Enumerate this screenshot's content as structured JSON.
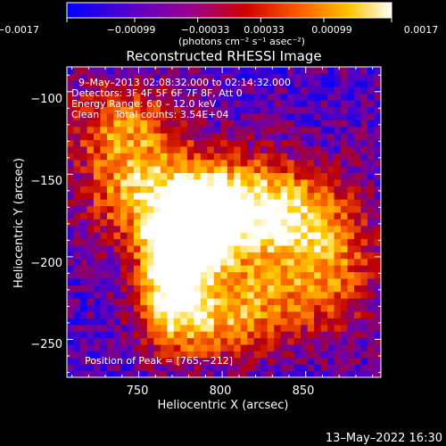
{
  "colorbar": {
    "ticks": [
      "−0.0017",
      "−0.00099",
      "−0.00033",
      "0.00033",
      "0.00099",
      "0.0017"
    ],
    "unit_label": "(photons cm⁻² s⁻¹ asec⁻²)"
  },
  "title": "Reconstructed RHESSI Image",
  "info": {
    "time_range": "9–May–2013 02:08:32.000 to 02:14:32.000",
    "detectors": "Detectors: 3F 4F 5F 6F 7F 8F, Att 0",
    "energy": "Energy Range: 6.0 – 12.0 keV",
    "clean": "Clean     Total counts: 3.54E+04"
  },
  "peak_text": "Position of Peak = [765,−212]",
  "footer_date": "13–May–2022 16:30",
  "chart_data": {
    "type": "heatmap",
    "title": "Reconstructed RHESSI Image",
    "xlabel": "Heliocentric X (arcsec)",
    "ylabel": "Heliocentric Y (arcsec)",
    "xlim": [
      707,
      895
    ],
    "ylim": [
      -273,
      -85
    ],
    "xticks": [
      750,
      800,
      850
    ],
    "xtick_labels": [
      "750",
      "800",
      "850"
    ],
    "yticks": [
      -100,
      -150,
      -200,
      -250
    ],
    "ytick_labels": [
      "−100",
      "−150",
      "−200",
      "−250"
    ],
    "colorbar_range": [
      -0.0017,
      0.0017
    ],
    "colormap": [
      "#0000ff",
      "#6a00b0",
      "#c00000",
      "#ff6a00",
      "#ffd000",
      "#ffffff"
    ],
    "peak_position": [
      765,
      -212
    ],
    "emission_components": [
      {
        "x": 770,
        "y": -208,
        "sx": 14,
        "sy": 26,
        "amp": 1.0
      },
      {
        "x": 787,
        "y": -180,
        "sx": 12,
        "sy": 18,
        "amp": 0.85
      },
      {
        "x": 800,
        "y": -170,
        "sx": 24,
        "sy": 22,
        "amp": 0.6
      },
      {
        "x": 748,
        "y": -160,
        "sx": 22,
        "sy": 22,
        "amp": 0.55
      },
      {
        "x": 740,
        "y": -120,
        "sx": 24,
        "sy": 18,
        "amp": 0.45
      },
      {
        "x": 835,
        "y": -175,
        "sx": 24,
        "sy": 22,
        "amp": 0.6
      },
      {
        "x": 865,
        "y": -205,
        "sx": 20,
        "sy": 28,
        "amp": 0.45
      },
      {
        "x": 815,
        "y": -225,
        "sx": 26,
        "sy": 16,
        "amp": 0.45
      },
      {
        "x": 795,
        "y": -245,
        "sx": 26,
        "sy": 14,
        "amp": 0.35
      }
    ]
  }
}
